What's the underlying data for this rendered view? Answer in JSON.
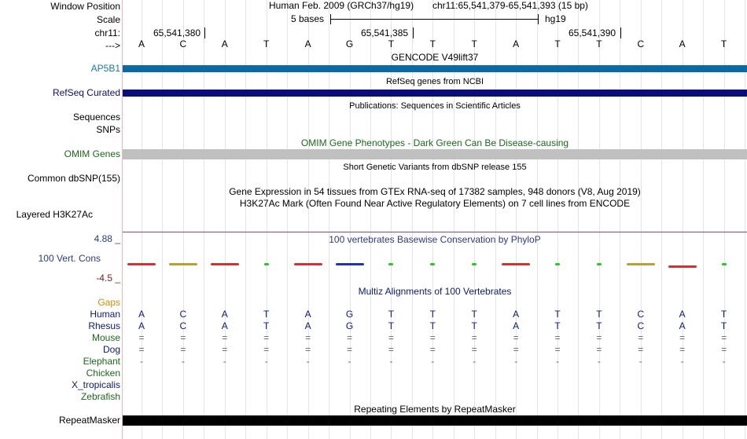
{
  "labels": {
    "window_position": "Window Position",
    "scale": "Scale",
    "chrom": "chr11:",
    "strand": "--->",
    "ap5b1": "AP5B1",
    "refseq": "RefSeq Curated",
    "sequences": "Sequences",
    "snps": "SNPs",
    "omim": "OMIM Genes",
    "common_dbsnp": "Common dbSNP(155)",
    "h3k27ac": "Layered H3K27Ac",
    "cons_max": "4.88 _",
    "cons_label": "100 Vert. Cons",
    "cons_min": "-4.5 _",
    "gaps": "Gaps"
  },
  "header": {
    "assembly": "Human Feb. 2009 (GRCh37/hg19)",
    "position": "chr11:65,541,379-65,541,393 (15 bp)",
    "scale_text": "5 bases",
    "scale_db": "hg19",
    "coord1": "65,541,380",
    "coord2": "65,541,385",
    "coord3": "65,541,390"
  },
  "bases": [
    "A",
    "C",
    "A",
    "T",
    "A",
    "G",
    "T",
    "T",
    "T",
    "A",
    "T",
    "T",
    "C",
    "A",
    "T"
  ],
  "tracks": {
    "gencode": "GENCODE V49lift37",
    "refseq": "RefSeq genes from NCBI",
    "publications": "Publications: Sequences in Scientific Articles",
    "omim": "OMIM Gene Phenotypes - Dark Green Can Be Disease-causing",
    "short_variants": "Short Genetic Variants from dbSNP release 155",
    "gtex": "Gene Expression in 54 tissues from GTEx RNA-seq of 17382 samples, 948 donors (V8, Aug 2019)",
    "h3k27ac": "H3K27Ac Mark (Often Found Near Active Regulatory Elements) on 7 cell lines from ENCODE",
    "phylop": "100 vertebrates Basewise Conservation by PhyloP",
    "multiz": "Multiz Alignments of 100 Vertebrates",
    "repeatmasker": "Repeating Elements by RepeatMasker",
    "repeatmasker_label": "RepeatMasker"
  },
  "species": [
    {
      "name": "Human",
      "color": "#0a1a7a",
      "row": [
        "A",
        "C",
        "A",
        "T",
        "A",
        "G",
        "T",
        "T",
        "T",
        "A",
        "T",
        "T",
        "C",
        "A",
        "T"
      ]
    },
    {
      "name": "Rhesus",
      "color": "#0a1a7a",
      "row": [
        "A",
        "C",
        "A",
        "T",
        "A",
        "G",
        "T",
        "T",
        "T",
        "A",
        "T",
        "T",
        "C",
        "A",
        "T"
      ]
    },
    {
      "name": "Mouse",
      "color": "#1a6a1a",
      "row": [
        "=",
        "=",
        "=",
        "=",
        "=",
        "=",
        "=",
        "=",
        "=",
        "=",
        "=",
        "=",
        "=",
        "=",
        "="
      ]
    },
    {
      "name": "Dog",
      "color": "#0a1a7a",
      "row": [
        "=",
        "=",
        "=",
        "=",
        "=",
        "=",
        "=",
        "=",
        "=",
        "=",
        "=",
        "=",
        "=",
        "=",
        "="
      ]
    },
    {
      "name": "Elephant",
      "color": "#1a6a1a",
      "row": [
        "-",
        "-",
        "-",
        "-",
        "-",
        "-",
        "-",
        "-",
        "-",
        "-",
        "-",
        "-",
        "-",
        "-",
        "-"
      ]
    },
    {
      "name": "Chicken",
      "color": "#1a6a1a",
      "row": []
    },
    {
      "name": "X_tropicalis",
      "color": "#0a1a7a",
      "row": []
    },
    {
      "name": "Zebrafish",
      "color": "#1a6a1a",
      "row": []
    }
  ],
  "phylop_colors": [
    "#cc3333",
    "#b8a038",
    "#cc3333",
    "#22cc22",
    "#cc3333",
    "#2233aa",
    "#22cc22",
    "#22cc22",
    "#22cc22",
    "#cc3333",
    "#22cc22",
    "#22cc22",
    "#b8a038",
    "#cc3333",
    "#22cc22"
  ],
  "colors": {
    "gencode_bar": "#0b6aa6",
    "refseq_bar": "#0c0c78",
    "omim_bar": "#c0c0c0",
    "repeatmasker_bar": "#000000",
    "h3k27ac_line": "#8a4a7a"
  }
}
